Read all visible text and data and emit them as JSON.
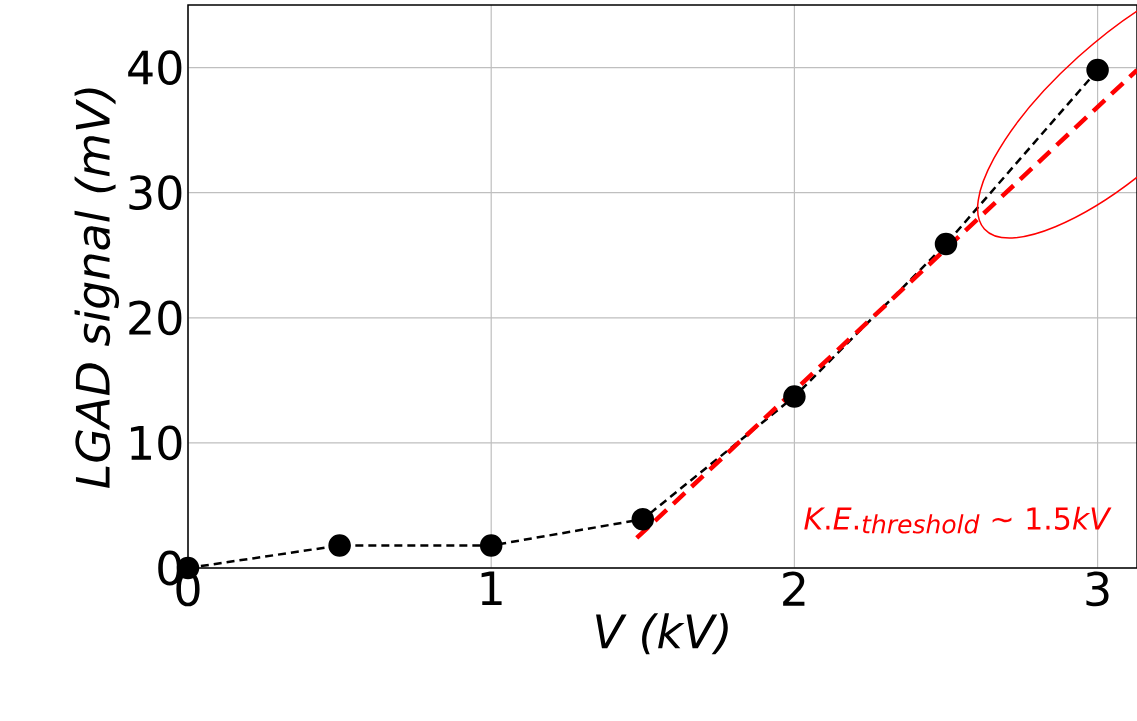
{
  "chart_data": {
    "type": "line",
    "xlabel": "V (kV)",
    "ylabel": "LGAD signal (mV)",
    "xlim": [
      0,
      3.13
    ],
    "ylim": [
      0,
      45
    ],
    "xticks": [
      0,
      1,
      2,
      3
    ],
    "yticks": [
      0,
      10,
      20,
      30,
      40
    ],
    "grid": true,
    "series": [
      {
        "color": "#000000",
        "marker": "circle",
        "line_style": "dashed",
        "x": [
          0,
          0.5,
          1,
          1.5,
          2,
          2.5,
          3
        ],
        "values": [
          0,
          1.8,
          1.8,
          3.9,
          13.7,
          25.9,
          39.8
        ]
      },
      {
        "color": "#ff0000",
        "marker": "none",
        "line_style": "dashed",
        "x": [
          1.48,
          3.13
        ],
        "values": [
          2.4,
          39.8
        ]
      }
    ],
    "annotations": [
      "K.E._{threshold}\\ \\mbox{\\textasciitilde}\\ \\mbox{1.5}kV"
    ]
  }
}
